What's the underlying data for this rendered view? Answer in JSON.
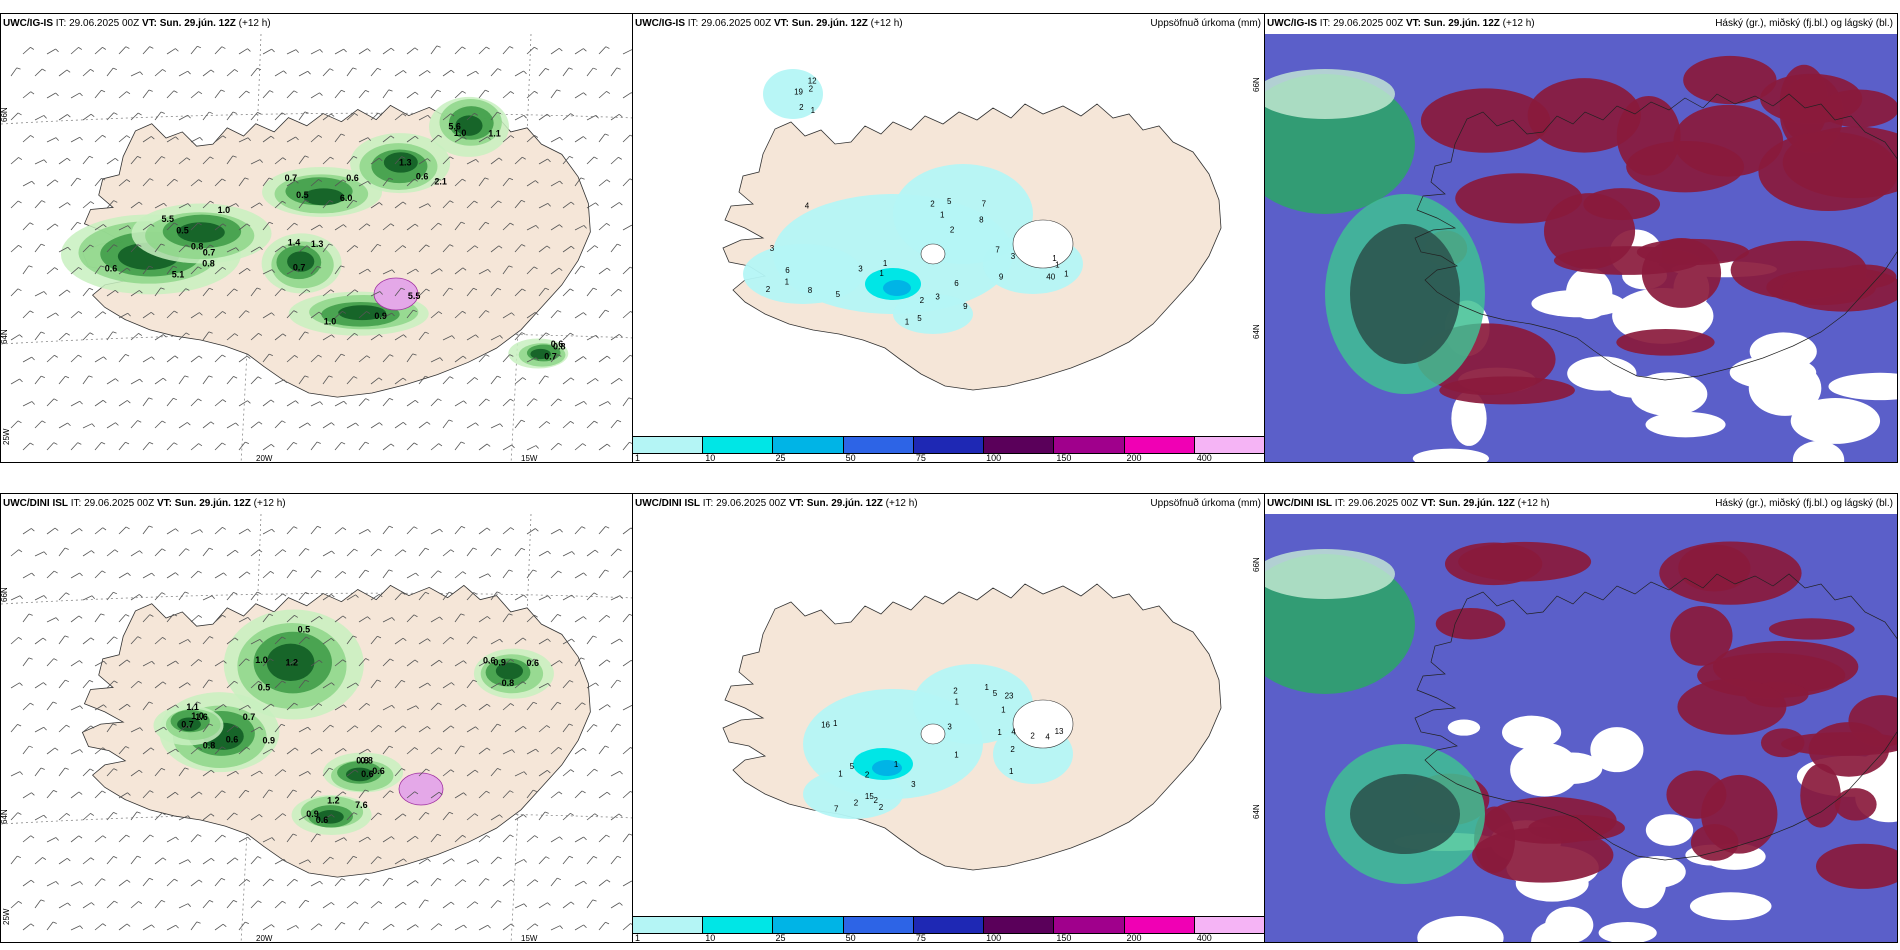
{
  "rows": [
    {
      "wind_panel": {
        "model": "UWC/IG-IS",
        "it": "IT: 29.06.2025 00Z",
        "vt_label": "VT:",
        "vt": "Sun. 29.jún. 12Z",
        "lead": "(+12 h)"
      },
      "precip_panel": {
        "model": "UWC/IG-IS",
        "it": "IT: 29.06.2025 00Z",
        "vt_label": "VT:",
        "vt": "Sun. 29.jún. 12Z",
        "lead": "(+12 h)",
        "right_title": "Uppsöfnuð úrkoma (mm)"
      },
      "cloud_panel": {
        "model": "UWC/IG-IS",
        "it": "IT: 29.06.2025 00Z",
        "vt_label": "VT:",
        "vt": "Sun. 29.jún. 12Z",
        "lead": "(+12 h)",
        "right_title": "Háský (gr.), miðský (fj.bl.) og lágský (bl.)"
      },
      "precip_values": [
        "1",
        "2",
        "3",
        "1",
        "1",
        "2",
        "1",
        "1",
        "1",
        "1",
        "2",
        "3",
        "4",
        "7",
        "6",
        "40",
        "19",
        "9",
        "8",
        "5",
        "5",
        "3",
        "2",
        "5",
        "6",
        "7",
        "8",
        "9",
        "12",
        "1",
        "3",
        "2",
        "2",
        "1"
      ],
      "wind_values": [
        "0.7",
        "0.5",
        "0.7",
        "0.9",
        "1.0",
        "0.6",
        "0.7",
        "0.7",
        "0.8",
        "0.8",
        "6.0",
        "5.5",
        "5.6",
        "2.1",
        "1.4",
        "0.8",
        "5.1",
        "5.5",
        "0.6",
        "1.0",
        "1.1",
        "1.3",
        "1.3",
        "0.6",
        "0.6",
        "1.0",
        "0.5"
      ]
    },
    {
      "wind_panel": {
        "model": "UWC/DINI ISL",
        "it": "IT: 29.06.2025 00Z",
        "vt_label": "VT:",
        "vt": "Sun. 29.jún. 12Z",
        "lead": "(+12 h)"
      },
      "precip_panel": {
        "model": "UWC/DINI ISL",
        "it": "IT: 29.06.2025 00Z",
        "vt_label": "VT:",
        "vt": "Sun. 29.jún. 12Z",
        "lead": "(+12 h)",
        "right_title": "Uppsöfnuð úrkoma (mm)"
      },
      "cloud_panel": {
        "model": "UWC/DINI ISL",
        "it": "IT: 29.06.2025 00Z",
        "vt_label": "VT:",
        "vt": "Sun. 29.jún. 12Z",
        "lead": "(+12 h)",
        "right_title": "Háský (gr.), miðský (fj.bl.) og lágský (bl.)"
      },
      "precip_values": [
        "1",
        "1",
        "2",
        "1",
        "1",
        "2",
        "1",
        "4",
        "3",
        "23",
        "15",
        "13",
        "16",
        "5",
        "7",
        "4",
        "5",
        "3",
        "2",
        "2",
        "1",
        "1",
        "2",
        "2",
        "1",
        "1",
        "2"
      ],
      "wind_values": [
        "0.5",
        "0.7",
        "0.6",
        "0.7",
        "0.8",
        "0.9",
        "1.0",
        "0.8",
        "0.8",
        "1.1",
        "0.6",
        "7.6",
        "1.2",
        "0.9",
        "0.9",
        "1.6",
        "0.6",
        "1.2",
        "0.5",
        "0.6",
        "0.6",
        "1.0",
        "0.8",
        "0.6"
      ]
    }
  ],
  "map_labels": {
    "lat66": "66N",
    "lat64": "64N",
    "lon25": "25W",
    "lon20": "20W",
    "lon15": "15W"
  },
  "colorbar": {
    "labels": [
      "1",
      "10",
      "25",
      "50",
      "75",
      "100",
      "150",
      "200",
      "400"
    ],
    "colors": [
      "#b4f5f5",
      "#00e6e6",
      "#00b4e6",
      "#2d64e6",
      "#1e28b4",
      "#5a005a",
      "#a0008c",
      "#f000b4",
      "#f5b4f5"
    ]
  }
}
